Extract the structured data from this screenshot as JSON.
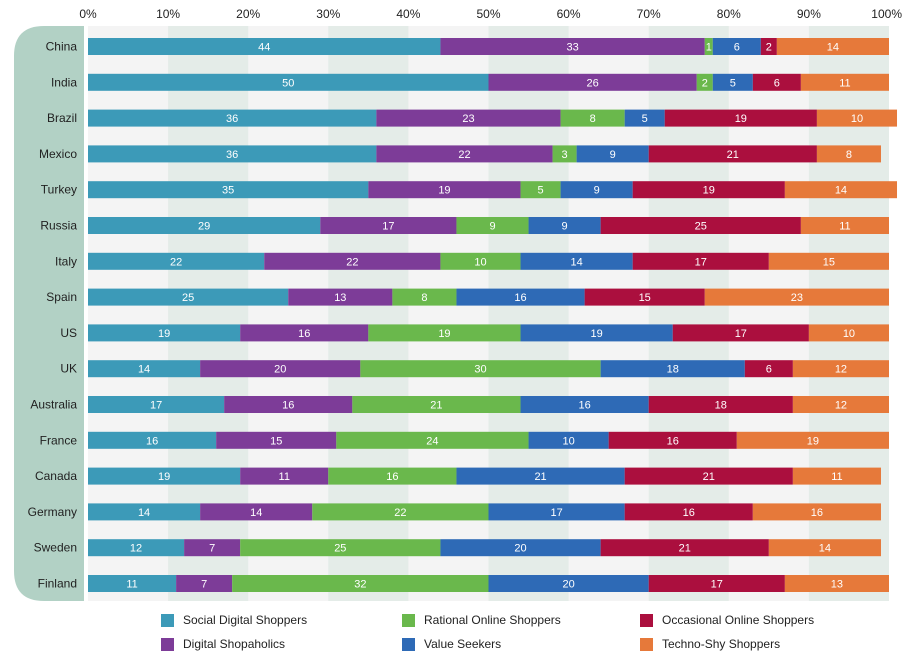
{
  "chart_data": {
    "type": "bar",
    "orientation": "horizontal",
    "stacked": true,
    "x_ticks": [
      "0%",
      "10%",
      "20%",
      "30%",
      "40%",
      "50%",
      "60%",
      "70%",
      "80%",
      "90%",
      "100%"
    ],
    "xlim": [
      0,
      100
    ],
    "categories": [
      "China",
      "India",
      "Brazil",
      "Mexico",
      "Turkey",
      "Russia",
      "Italy",
      "Spain",
      "US",
      "UK",
      "Australia",
      "France",
      "Canada",
      "Germany",
      "Sweden",
      "Finland"
    ],
    "series": [
      {
        "name": "Social Digital Shoppers",
        "color": "#3c9ab8",
        "values": [
          44,
          50,
          36,
          36,
          35,
          29,
          22,
          25,
          19,
          14,
          17,
          16,
          19,
          14,
          12,
          11
        ]
      },
      {
        "name": "Digital Shopaholics",
        "color": "#7d3c98",
        "values": [
          33,
          26,
          23,
          22,
          19,
          17,
          22,
          13,
          16,
          20,
          16,
          15,
          11,
          14,
          7,
          7
        ]
      },
      {
        "name": "Rational Online Shoppers",
        "color": "#6ab84c",
        "values": [
          1,
          2,
          8,
          3,
          5,
          9,
          10,
          8,
          19,
          30,
          21,
          24,
          16,
          22,
          25,
          32
        ]
      },
      {
        "name": "Value Seekers",
        "color": "#2e6ab6",
        "values": [
          6,
          5,
          5,
          9,
          9,
          9,
          14,
          16,
          19,
          18,
          16,
          10,
          21,
          17,
          20,
          20
        ]
      },
      {
        "name": "Occasional Online Shoppers",
        "color": "#ab0f3e",
        "values": [
          2,
          6,
          19,
          21,
          19,
          25,
          17,
          15,
          17,
          6,
          18,
          16,
          21,
          16,
          21,
          17
        ]
      },
      {
        "name": "Techno-Shy Shoppers",
        "color": "#e6793a",
        "values": [
          14,
          11,
          10,
          8,
          14,
          11,
          15,
          23,
          10,
          12,
          12,
          19,
          11,
          16,
          14,
          13
        ]
      }
    ],
    "legend_position": "bottom",
    "legend_layout": [
      [
        0,
        2,
        4
      ],
      [
        1,
        3,
        5
      ]
    ],
    "grid": true,
    "colors": {
      "label_panel": "#b2d1c5",
      "plot_background": "#f4f4f4",
      "alternate_band": "#e4ece8",
      "bar_text": "#ffffff"
    }
  }
}
